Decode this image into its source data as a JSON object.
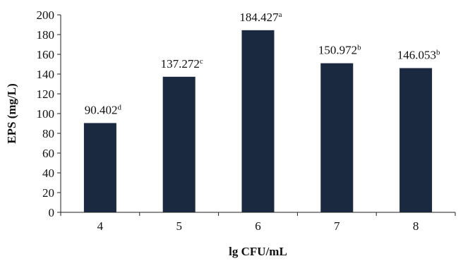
{
  "chart_data": {
    "type": "bar",
    "title": "",
    "xlabel": "lg CFU/mL",
    "ylabel": "EPS (mg/L)",
    "categories": [
      "4",
      "5",
      "6",
      "7",
      "8"
    ],
    "values": [
      90.402,
      137.272,
      184.427,
      150.972,
      146.053
    ],
    "data_labels": [
      "90.402",
      "137.272",
      "184.427",
      "150.972",
      "146.053"
    ],
    "significance_letters": [
      "d",
      "c",
      "a",
      "b",
      "b"
    ],
    "ylim": [
      0,
      200
    ],
    "yticks": [
      "0",
      "20",
      "40",
      "60",
      "80",
      "100",
      "120",
      "140",
      "160",
      "180",
      "200"
    ],
    "grid": false,
    "legend": "none",
    "bar_color": "#1a2940"
  }
}
